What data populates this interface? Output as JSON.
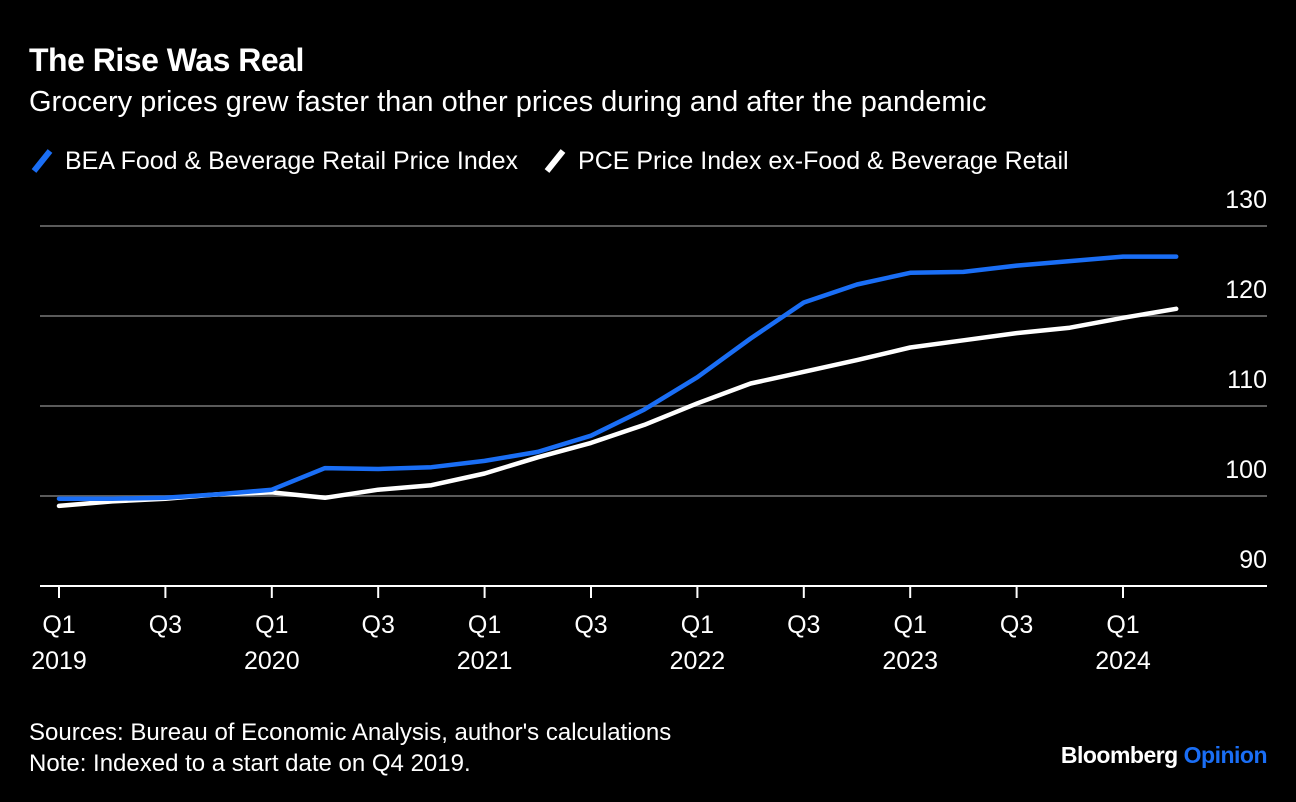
{
  "title": "The Rise Was Real",
  "subtitle": "Grocery prices grew faster than other prices during and after the pandemic",
  "brand": {
    "name": "Bloomberg",
    "product": "Opinion"
  },
  "sources": "Sources: Bureau of Economic Analysis, author's calculations",
  "note": "Note: Indexed to a start date on Q4 2019.",
  "colors": {
    "bg": "#000000",
    "blue": "#1a6ef5",
    "white": "#ffffff",
    "grid": "#5a5a5a"
  },
  "chart_data": {
    "type": "line",
    "x": [
      "Q1 2019",
      "Q2 2019",
      "Q3 2019",
      "Q4 2019",
      "Q1 2020",
      "Q2 2020",
      "Q3 2020",
      "Q4 2020",
      "Q1 2021",
      "Q2 2021",
      "Q3 2021",
      "Q4 2021",
      "Q1 2022",
      "Q2 2022",
      "Q3 2022",
      "Q4 2022",
      "Q1 2023",
      "Q2 2023",
      "Q3 2023",
      "Q4 2023",
      "Q1 2024",
      "Q2 2024"
    ],
    "series": [
      {
        "name": "BEA Food & Beverage Retail Price Index",
        "color": "#1a6ef5",
        "values": [
          99.7,
          99.7,
          99.8,
          100.2,
          100.7,
          103.1,
          103.0,
          103.2,
          103.9,
          104.9,
          106.7,
          109.6,
          113.2,
          117.5,
          121.5,
          123.5,
          124.8,
          124.9,
          125.6,
          126.1,
          126.6,
          126.6
        ]
      },
      {
        "name": "PCE Price Index ex-Food & Beverage Retail",
        "color": "#ffffff",
        "values": [
          98.9,
          99.4,
          99.7,
          100.2,
          100.4,
          99.8,
          100.7,
          101.2,
          102.5,
          104.3,
          105.9,
          107.9,
          110.3,
          112.5,
          113.8,
          115.1,
          116.5,
          117.3,
          118.1,
          118.7,
          119.8,
          120.8
        ]
      }
    ],
    "ylim": [
      90,
      130
    ],
    "yticks": [
      90,
      100,
      110,
      120,
      130
    ],
    "xticks": [
      {
        "index": 0,
        "quarter": "Q1",
        "year": "2019"
      },
      {
        "index": 2,
        "quarter": "Q3",
        "year": ""
      },
      {
        "index": 4,
        "quarter": "Q1",
        "year": "2020"
      },
      {
        "index": 6,
        "quarter": "Q3",
        "year": ""
      },
      {
        "index": 8,
        "quarter": "Q1",
        "year": "2021"
      },
      {
        "index": 10,
        "quarter": "Q3",
        "year": ""
      },
      {
        "index": 12,
        "quarter": "Q1",
        "year": "2022"
      },
      {
        "index": 14,
        "quarter": "Q3",
        "year": ""
      },
      {
        "index": 16,
        "quarter": "Q1",
        "year": "2023"
      },
      {
        "index": 18,
        "quarter": "Q3",
        "year": ""
      },
      {
        "index": 20,
        "quarter": "Q1",
        "year": "2024"
      }
    ],
    "grid": true,
    "legend": "top-left"
  }
}
